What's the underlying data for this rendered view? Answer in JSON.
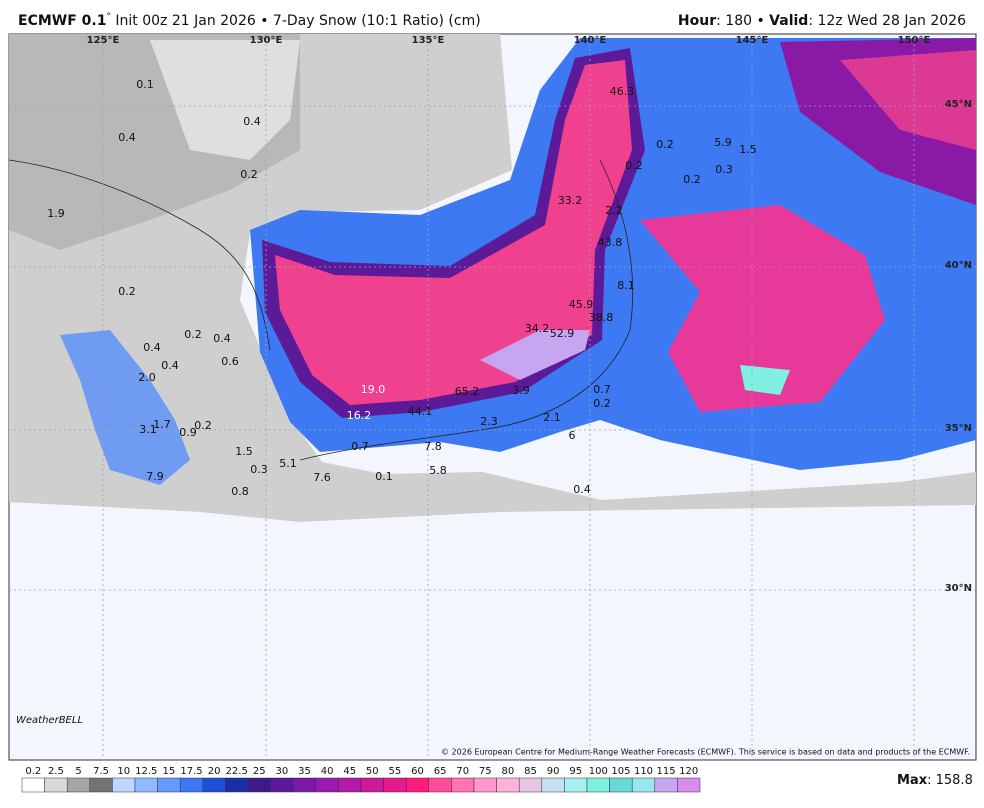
{
  "header": {
    "title_parts": [
      "ECMWF 0.1",
      "°",
      " Init 00z 21 Jan 2026 • 7-Day Snow (10:1 Ratio) (cm)"
    ],
    "right_parts": [
      "Hour",
      ": 180 • ",
      "Valid",
      ": 12z Wed 28 Jan 2026"
    ]
  },
  "map": {
    "longitude_labels": [
      "125°E",
      "130°E",
      "135°E",
      "140°E",
      "145°E",
      "150°E"
    ],
    "latitude_labels": [
      "45°N",
      "40°N",
      "35°N",
      "30°N"
    ],
    "point_labels": [
      "0.1",
      "0.4",
      "0.4",
      "0.2",
      "1.9",
      "0.2",
      "0.2",
      "0.4",
      "0.4",
      "0.6",
      "0.4",
      "2.0",
      "19.0",
      "65.2",
      "16.2",
      "44.1",
      "1.7",
      "3.1",
      "0.9",
      "0.2",
      "1.5",
      "0.3",
      "5.1",
      "0.7",
      "0.1",
      "7.6",
      "7.9",
      "0.8",
      "5.8",
      "7.8",
      "2.3",
      "3.9",
      "2.1",
      "6",
      "0.7",
      "0.2",
      "0.4",
      "45.9",
      "38.8",
      "34.2",
      "52.9",
      "8.1",
      "43.8",
      "33.2",
      "2.2",
      "0.2",
      "46.3",
      "0.2",
      "5.9",
      "1.5",
      "0.2",
      "0.3"
    ],
    "logo": "WeatherBELL",
    "copyright": "© 2026 European Centre for Medium-Range Weather Forecasts (ECMWF). This service is based on data and products of the ECMWF."
  },
  "colorbar": {
    "labels": [
      "0.2",
      "2.5",
      "5",
      "7.5",
      "10",
      "12.5",
      "15",
      "17.5",
      "20",
      "22.5",
      "25",
      "30",
      "35",
      "40",
      "45",
      "50",
      "55",
      "60",
      "65",
      "70",
      "75",
      "80",
      "85",
      "90",
      "95",
      "100",
      "105",
      "110",
      "115",
      "120"
    ],
    "colors": [
      "#ffffff",
      "#d9d9d9",
      "#a6a6a6",
      "#737373",
      "#bdd7ff",
      "#8fbaff",
      "#6699ff",
      "#3d79f2",
      "#1f4fd6",
      "#1a2fa6",
      "#3d1a8c",
      "#5c1a99",
      "#7a1aa6",
      "#991ab3",
      "#b31aa6",
      "#cc1a99",
      "#e61a8c",
      "#ff1a80",
      "#ff4d99",
      "#ff73b3",
      "#ff99cc",
      "#ffb3d9",
      "#e6c6e6",
      "#c6e0f0",
      "#a6f0f0",
      "#80f0e0",
      "#66d9d9",
      "#99e6f0",
      "#c6a6f0",
      "#d98cf0"
    ]
  },
  "max": {
    "label": "Max",
    "value_text": ": 158.8"
  }
}
